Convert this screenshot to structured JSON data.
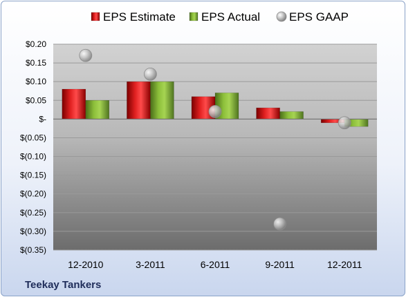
{
  "footer": {
    "company": "Teekay Tankers"
  },
  "chart_data": {
    "type": "bar",
    "categories": [
      "12-2010",
      "3-2011",
      "6-2011",
      "9-2011",
      "12-2011"
    ],
    "series": [
      {
        "name": "EPS Estimate",
        "kind": "bar",
        "color": "#c00000",
        "values": [
          0.08,
          0.1,
          0.06,
          0.03,
          -0.01
        ]
      },
      {
        "name": "EPS Actual",
        "kind": "bar",
        "color": "#6b9a2a",
        "values": [
          0.05,
          0.1,
          0.07,
          0.02,
          -0.02
        ]
      },
      {
        "name": "EPS GAAP",
        "kind": "marker",
        "color": "#a6a6a6",
        "values": [
          0.17,
          0.12,
          0.02,
          -0.28,
          -0.01
        ]
      }
    ],
    "ylim": [
      -0.35,
      0.2
    ],
    "yticks": [
      0.2,
      0.15,
      0.1,
      0.05,
      0,
      -0.05,
      -0.1,
      -0.15,
      -0.2,
      -0.25,
      -0.3,
      -0.35
    ],
    "ytick_labels": [
      "$0.20",
      "$0.15",
      "$0.10",
      "$0.05",
      "$-",
      "$(0.05)",
      "$(0.10)",
      "$(0.15)",
      "$(0.20)",
      "$(0.25)",
      "$(0.30)",
      "$(0.35)"
    ],
    "grid": true,
    "legend_position": "top"
  }
}
